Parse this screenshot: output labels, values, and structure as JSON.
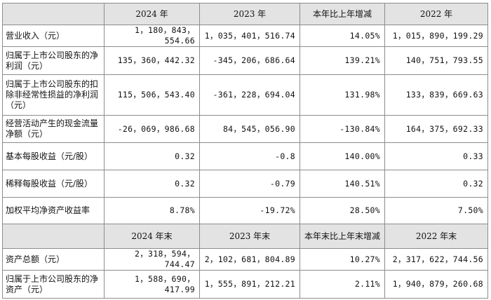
{
  "header1": [
    "",
    "2024 年",
    "2023 年",
    "本年比上年增减",
    "2022 年"
  ],
  "rows1": [
    {
      "label": "营业收入（元）",
      "v": [
        "1，180，843，554.66",
        "1，035，401，516.74",
        "14.05%",
        "1，015，890，199.29"
      ]
    },
    {
      "label": "归属于上市公司股东的净利润（元）",
      "v": [
        "135，360，442.32",
        "-345，206，686.64",
        "139.21%",
        "140，751，793.55"
      ]
    },
    {
      "label": "归属于上市公司股东的扣除非经常性损益的净利润（元）",
      "v": [
        "115，506，543.40",
        "-361，228，694.04",
        "131.98%",
        "133，839，669.63"
      ]
    },
    {
      "label": "经营活动产生的现金流量净额（元）",
      "v": [
        "-26，069，986.68",
        "84，545，056.90",
        "-130.84%",
        "164，375，692.33"
      ]
    },
    {
      "label": "基本每股收益（元/股）",
      "v": [
        "0.32",
        "-0.8",
        "140.00%",
        "0.33"
      ]
    },
    {
      "label": "稀释每股收益（元/股）",
      "v": [
        "0.32",
        "-0.79",
        "140.51%",
        "0.32"
      ]
    },
    {
      "label": "加权平均净资产收益率",
      "v": [
        "8.78%",
        "-19.72%",
        "28.50%",
        "7.50%"
      ]
    }
  ],
  "header2": [
    "",
    "2024 年末",
    "2023 年末",
    "本年末比上年末增减",
    "2022 年末"
  ],
  "rows2": [
    {
      "label": "资产总额（元）",
      "v": [
        "2，318，594，744.47",
        "2，102，681，804.89",
        "10.27%",
        "2，317，622，744.56"
      ]
    },
    {
      "label": "归属于上市公司股东的净资产（元）",
      "v": [
        "1，588，690，417.99",
        "1，555，891，212.21",
        "2.11%",
        "1，940，879，260.68"
      ]
    }
  ]
}
